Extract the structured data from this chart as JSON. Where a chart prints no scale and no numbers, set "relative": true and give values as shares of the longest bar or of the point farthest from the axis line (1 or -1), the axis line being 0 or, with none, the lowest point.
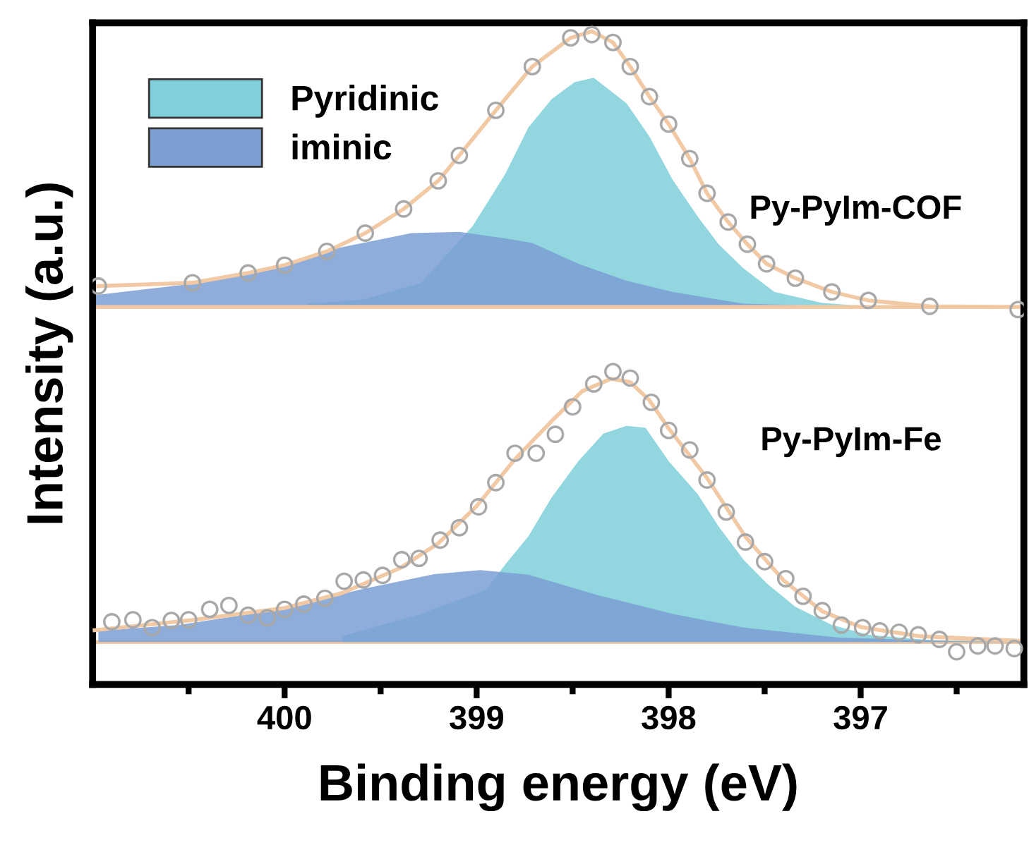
{
  "chart_data": {
    "type": "area",
    "relative": true,
    "xlabel": "Binding energy (eV)",
    "ylabel": "Intensity (a.u.)",
    "xlim": [
      401,
      396.15
    ],
    "xticks": [
      {
        "value": 400.5,
        "label": null
      },
      400,
      {
        "value": 399.5,
        "label": null
      },
      399,
      {
        "value": 398.5,
        "label": null
      },
      398,
      {
        "value": 397.5,
        "label": null
      },
      397,
      {
        "value": 396.5,
        "label": null
      }
    ],
    "legend": "top left",
    "grid": false,
    "ref_lines": [
      {
        "axis": "y",
        "value": 0.578,
        "color": "#f2c9a5"
      },
      {
        "axis": "y",
        "value": 0.065,
        "color": "#f2c9a5"
      }
    ],
    "annotations": [
      "Py-PyIm-COF",
      "Py-PyIm-Fe"
    ],
    "series": [
      {
        "name": "Pyridinic",
        "color": "#7fd0da",
        "x": [
          399.88,
          399.58,
          399.29,
          399.02,
          398.85,
          398.73,
          398.61,
          398.49,
          398.39,
          398.22,
          398.1,
          397.98,
          397.85,
          397.74,
          397.61,
          397.45,
          397.2,
          397.01,
          396.18
        ],
        "values": [
          0.583,
          0.59,
          0.615,
          0.702,
          0.782,
          0.853,
          0.896,
          0.922,
          0.929,
          0.89,
          0.839,
          0.773,
          0.717,
          0.674,
          0.637,
          0.601,
          0.584,
          0.58,
          0.578
        ]
      },
      {
        "name": "iminic",
        "color": "#7b9fd3",
        "x": [
          400.99,
          400.55,
          400.07,
          399.71,
          399.34,
          399.09,
          398.85,
          398.71,
          398.47,
          398.22,
          397.98,
          397.61,
          397.25,
          396.76,
          396.18
        ],
        "values": [
          0.596,
          0.611,
          0.637,
          0.669,
          0.691,
          0.693,
          0.683,
          0.676,
          0.644,
          0.618,
          0.601,
          0.583,
          0.58,
          0.579,
          0.578
        ]
      },
      {
        "type": "line",
        "color": "#f2c9a5",
        "x": [
          400.97,
          400.48,
          400.19,
          400.0,
          399.78,
          399.58,
          399.38,
          399.2,
          399.09,
          398.9,
          398.71,
          398.51,
          398.4,
          398.29,
          398.2,
          398.1,
          398.0,
          397.89,
          397.8,
          397.69,
          397.59,
          397.49,
          397.34,
          397.15,
          396.96,
          396.64,
          396.18
        ],
        "values": [
          0.61,
          0.615,
          0.63,
          0.642,
          0.663,
          0.691,
          0.728,
          0.771,
          0.81,
          0.879,
          0.946,
          0.99,
          1.0,
          0.983,
          0.946,
          0.9,
          0.858,
          0.805,
          0.752,
          0.708,
          0.674,
          0.644,
          0.622,
          0.601,
          0.588,
          0.579,
          0.578
        ]
      },
      {
        "type": "scatter",
        "marker": "circle",
        "color": "#a8a8a8",
        "x": [
          400.97,
          400.48,
          400.19,
          400.0,
          399.78,
          399.58,
          399.38,
          399.2,
          399.09,
          398.9,
          398.71,
          398.51,
          398.4,
          398.29,
          398.2,
          398.1,
          398.0,
          397.89,
          397.8,
          397.69,
          397.59,
          397.49,
          397.34,
          397.15,
          396.96,
          396.64,
          396.18
        ],
        "values": [
          0.61,
          0.615,
          0.63,
          0.642,
          0.663,
          0.691,
          0.728,
          0.771,
          0.81,
          0.879,
          0.946,
          0.99,
          0.995,
          0.983,
          0.946,
          0.9,
          0.858,
          0.805,
          0.752,
          0.708,
          0.674,
          0.644,
          0.622,
          0.601,
          0.588,
          0.579,
          0.574
        ]
      },
      {
        "color": "#7fd0da",
        "x": [
          399.7,
          399.3,
          398.95,
          398.85,
          398.73,
          398.61,
          398.47,
          398.34,
          398.22,
          398.12,
          398.0,
          397.85,
          397.74,
          397.61,
          397.49,
          397.34,
          397.15,
          396.96,
          396.6,
          396.18
        ],
        "values": [
          0.074,
          0.107,
          0.145,
          0.184,
          0.227,
          0.286,
          0.342,
          0.384,
          0.396,
          0.393,
          0.342,
          0.292,
          0.242,
          0.191,
          0.155,
          0.119,
          0.091,
          0.076,
          0.067,
          0.065
        ]
      },
      {
        "color": "#7b9fd3",
        "x": [
          400.97,
          400.55,
          400.07,
          399.58,
          399.22,
          398.98,
          398.73,
          398.36,
          398.22,
          397.98,
          397.61,
          397.12,
          396.52,
          396.18
        ],
        "values": [
          0.082,
          0.091,
          0.113,
          0.147,
          0.169,
          0.175,
          0.168,
          0.136,
          0.126,
          0.108,
          0.087,
          0.072,
          0.066,
          0.065
        ]
      },
      {
        "type": "line",
        "color": "#f2c9a5",
        "x": [
          400.99,
          400.5,
          400.0,
          399.7,
          399.4,
          399.2,
          399.0,
          398.8,
          398.6,
          398.45,
          398.3,
          398.2,
          398.1,
          398.0,
          397.8,
          397.6,
          397.4,
          397.2,
          397.0,
          396.7,
          396.18
        ],
        "values": [
          0.083,
          0.098,
          0.117,
          0.14,
          0.178,
          0.216,
          0.273,
          0.345,
          0.406,
          0.449,
          0.468,
          0.463,
          0.435,
          0.392,
          0.316,
          0.226,
          0.159,
          0.112,
          0.088,
          0.074,
          0.067
        ]
      },
      {
        "type": "scatter",
        "marker": "circle",
        "color": "#a8a8a8",
        "x": [
          400.9,
          400.79,
          400.69,
          400.59,
          400.5,
          400.39,
          400.29,
          400.19,
          400.09,
          400.0,
          399.9,
          399.79,
          399.69,
          399.59,
          399.49,
          399.39,
          399.3,
          399.19,
          399.09,
          398.99,
          398.9,
          398.8,
          398.69,
          398.59,
          398.5,
          398.39,
          398.29,
          398.2,
          398.09,
          398.0,
          397.89,
          397.8,
          397.7,
          397.6,
          397.5,
          397.39,
          397.3,
          397.2,
          397.1,
          396.99,
          396.9,
          396.8,
          396.7,
          396.59,
          396.5,
          396.39,
          396.3,
          396.2
        ],
        "values": [
          0.096,
          0.099,
          0.087,
          0.098,
          0.099,
          0.115,
          0.121,
          0.106,
          0.102,
          0.115,
          0.123,
          0.132,
          0.158,
          0.16,
          0.167,
          0.191,
          0.193,
          0.221,
          0.24,
          0.272,
          0.309,
          0.354,
          0.354,
          0.383,
          0.425,
          0.46,
          0.479,
          0.469,
          0.432,
          0.389,
          0.359,
          0.313,
          0.264,
          0.218,
          0.188,
          0.162,
          0.135,
          0.113,
          0.091,
          0.087,
          0.082,
          0.08,
          0.076,
          0.069,
          0.05,
          0.059,
          0.059,
          0.055
        ]
      }
    ]
  }
}
